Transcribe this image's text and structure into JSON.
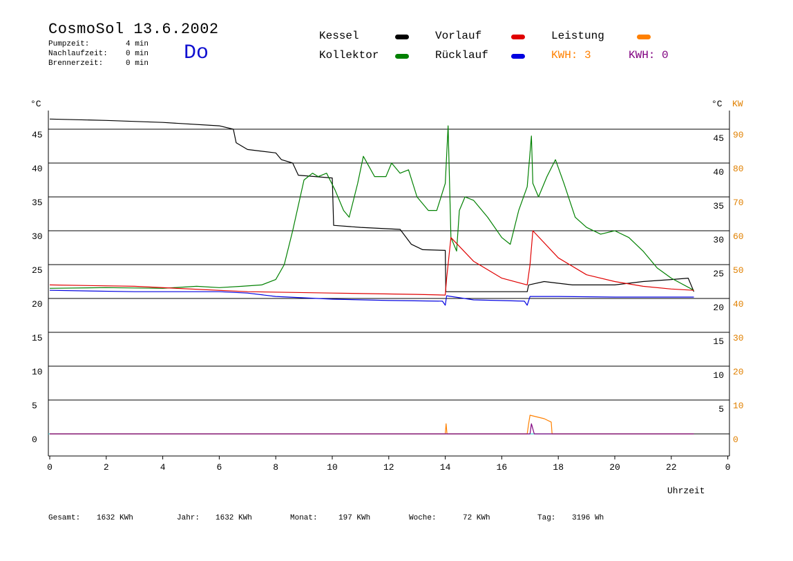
{
  "header": {
    "title": "CosmoSol 13.6.2002",
    "day": "Do",
    "stats": [
      {
        "label": "Pumpzeit:",
        "value": "4 min"
      },
      {
        "label": "Nachlaufzeit:",
        "value": "0 min"
      },
      {
        "label": "Brennerzeit:",
        "value": "0 min"
      }
    ]
  },
  "legend": {
    "kessel": "Kessel",
    "kollektor": "Kollektor",
    "vorlauf": "Vorlauf",
    "ruecklauf": "Rücklauf",
    "leistung": "Leistung",
    "kwh1": "KWH: 3",
    "kwh2": "KWH: 0"
  },
  "colors": {
    "kessel": "#000000",
    "kollektor": "#008000",
    "vorlauf": "#e00000",
    "ruecklauf": "#0000e0",
    "leistung": "#ff8000",
    "kwh2": "#800080",
    "baseline": "#40d0d0"
  },
  "footer": [
    {
      "label": "Gesamt:",
      "value": "1632 KWh"
    },
    {
      "label": "Jahr:",
      "value": "1632 KWh"
    },
    {
      "label": "Monat:",
      "value": "197 KWh"
    },
    {
      "label": "Woche:",
      "value": "72 KWh"
    },
    {
      "label": "Tag:",
      "value": "3196 Wh"
    }
  ],
  "chart_data": {
    "type": "line",
    "xlabel": "Uhrzeit",
    "ylabel_left": "°C",
    "ylabel_right": [
      "°C",
      "KW"
    ],
    "xlim": [
      0,
      24
    ],
    "ylim": [
      0,
      50
    ],
    "y2lim": [
      0,
      100
    ],
    "grid": true,
    "x_ticks": [
      "0",
      "2",
      "4",
      "6",
      "8",
      "10",
      "12",
      "14",
      "16",
      "18",
      "20",
      "22",
      "0"
    ],
    "y_ticks_left": [
      "0",
      "5",
      "10",
      "15",
      "20",
      "25",
      "30",
      "35",
      "40",
      "45"
    ],
    "y_ticks_right": [
      "5",
      "10",
      "15",
      "20",
      "25",
      "30",
      "35",
      "40",
      "45"
    ],
    "y2_ticks": [
      "0",
      "10",
      "20",
      "30",
      "40",
      "50",
      "60",
      "70",
      "80",
      "90"
    ],
    "series": [
      {
        "name": "Kessel",
        "color_key": "kessel",
        "points": [
          [
            0,
            46.5
          ],
          [
            2,
            46.3
          ],
          [
            4,
            46
          ],
          [
            6,
            45.5
          ],
          [
            6.5,
            45
          ],
          [
            6.6,
            43
          ],
          [
            7,
            42
          ],
          [
            8,
            41.5
          ],
          [
            8.2,
            40.5
          ],
          [
            8.6,
            40
          ],
          [
            8.8,
            38.2
          ],
          [
            10.0,
            37.8
          ],
          [
            10.05,
            30.8
          ],
          [
            11,
            30.5
          ],
          [
            12.4,
            30.2
          ],
          [
            12.8,
            28
          ],
          [
            13.2,
            27.2
          ],
          [
            14.0,
            27.1
          ],
          [
            14.02,
            21
          ],
          [
            16.9,
            21
          ],
          [
            16.95,
            22
          ],
          [
            17.5,
            22.5
          ],
          [
            17.9,
            22.3
          ],
          [
            18.5,
            22
          ],
          [
            20,
            22
          ],
          [
            21,
            22.5
          ],
          [
            22,
            22.8
          ],
          [
            22.6,
            23
          ],
          [
            22.8,
            21
          ]
        ]
      },
      {
        "name": "Kollektor",
        "color_key": "kollektor",
        "points": [
          [
            0,
            21.5
          ],
          [
            2,
            21.6
          ],
          [
            4,
            21.5
          ],
          [
            5.2,
            21.8
          ],
          [
            6,
            21.6
          ],
          [
            6.8,
            21.8
          ],
          [
            7.5,
            22
          ],
          [
            8,
            22.8
          ],
          [
            8.3,
            25
          ],
          [
            8.6,
            30
          ],
          [
            9.0,
            37.5
          ],
          [
            9.3,
            38.5
          ],
          [
            9.5,
            38
          ],
          [
            9.8,
            38.5
          ],
          [
            10.1,
            36
          ],
          [
            10.4,
            33
          ],
          [
            10.6,
            32
          ],
          [
            10.9,
            37
          ],
          [
            11.1,
            41
          ],
          [
            11.5,
            38
          ],
          [
            11.9,
            38
          ],
          [
            12.1,
            40
          ],
          [
            12.4,
            38.5
          ],
          [
            12.7,
            39
          ],
          [
            13.0,
            35
          ],
          [
            13.4,
            33
          ],
          [
            13.7,
            33
          ],
          [
            14.0,
            37
          ],
          [
            14.1,
            45.5
          ],
          [
            14.2,
            29
          ],
          [
            14.4,
            27
          ],
          [
            14.5,
            33
          ],
          [
            14.7,
            35
          ],
          [
            15.0,
            34.5
          ],
          [
            15.5,
            32
          ],
          [
            16.0,
            29
          ],
          [
            16.3,
            28
          ],
          [
            16.6,
            33
          ],
          [
            16.9,
            36.5
          ],
          [
            17.05,
            44
          ],
          [
            17.1,
            37
          ],
          [
            17.3,
            35
          ],
          [
            17.6,
            38
          ],
          [
            17.9,
            40.5
          ],
          [
            18.2,
            37
          ],
          [
            18.6,
            32
          ],
          [
            19.0,
            30.5
          ],
          [
            19.5,
            29.5
          ],
          [
            20.0,
            30
          ],
          [
            20.5,
            29
          ],
          [
            21.0,
            27
          ],
          [
            21.5,
            24.5
          ],
          [
            22.0,
            23
          ],
          [
            22.8,
            21.2
          ]
        ]
      },
      {
        "name": "Vorlauf",
        "color_key": "vorlauf",
        "points": [
          [
            0,
            22
          ],
          [
            3,
            21.8
          ],
          [
            7,
            21
          ],
          [
            10,
            20.8
          ],
          [
            13,
            20.6
          ],
          [
            14.0,
            20.5
          ],
          [
            14.05,
            23
          ],
          [
            14.2,
            29
          ],
          [
            15,
            25.5
          ],
          [
            16,
            23
          ],
          [
            16.9,
            22
          ],
          [
            17.0,
            25
          ],
          [
            17.1,
            30
          ],
          [
            18,
            26
          ],
          [
            19,
            23.5
          ],
          [
            20,
            22.5
          ],
          [
            21,
            21.8
          ],
          [
            22,
            21.4
          ],
          [
            22.8,
            21.2
          ]
        ]
      },
      {
        "name": "Rücklauf",
        "color_key": "ruecklauf",
        "points": [
          [
            0,
            21.2
          ],
          [
            3,
            21
          ],
          [
            6,
            21
          ],
          [
            7,
            20.8
          ],
          [
            8,
            20.3
          ],
          [
            10,
            19.9
          ],
          [
            12,
            19.7
          ],
          [
            13.9,
            19.6
          ],
          [
            14.0,
            19
          ],
          [
            14.05,
            20.4
          ],
          [
            15,
            19.8
          ],
          [
            16.8,
            19.6
          ],
          [
            16.9,
            19
          ],
          [
            17.0,
            20.3
          ],
          [
            18,
            20.3
          ],
          [
            20,
            20.2
          ],
          [
            22.8,
            20.2
          ]
        ]
      },
      {
        "name": "Leistung",
        "color_key": "leistung",
        "axis": "y2",
        "points": [
          [
            0,
            0
          ],
          [
            14.0,
            0
          ],
          [
            14.03,
            3
          ],
          [
            14.06,
            0
          ],
          [
            16.9,
            0
          ],
          [
            16.95,
            3
          ],
          [
            17.0,
            5.5
          ],
          [
            17.5,
            4.5
          ],
          [
            17.75,
            3.5
          ],
          [
            17.78,
            0
          ],
          [
            22.8,
            0
          ]
        ]
      },
      {
        "name": "KWH",
        "color_key": "kwh2",
        "axis": "y2",
        "points": [
          [
            0,
            0
          ],
          [
            17.0,
            0
          ],
          [
            17.05,
            3
          ],
          [
            17.15,
            0
          ],
          [
            22.8,
            0
          ]
        ]
      }
    ]
  }
}
